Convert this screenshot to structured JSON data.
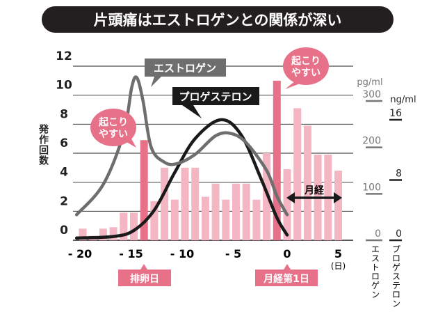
{
  "chart_data": {
    "type": "bar",
    "title": "片頭痛はエストロゲンとの関係が深い",
    "ylabel": "発作回数",
    "ylim": [
      0,
      12
    ],
    "yticks": [
      "0",
      "2",
      "4",
      "6",
      "8",
      "10",
      "12"
    ],
    "xticks": [
      "-20",
      "-15",
      "-10",
      "-5",
      "0",
      "5"
    ],
    "xunit": "(日)",
    "x": [
      -20,
      -19,
      -18,
      -17,
      -16,
      -15,
      -14,
      -13,
      -12,
      -11,
      -10,
      -9,
      -8,
      -7,
      -6,
      -5,
      -4,
      -3,
      -2,
      -1,
      0,
      1,
      2,
      3,
      4,
      5
    ],
    "values": [
      0.8,
      0.3,
      0.8,
      0.9,
      1.9,
      1.9,
      6.9,
      2.7,
      5.0,
      2.8,
      5.0,
      5.0,
      3.0,
      3.9,
      2.8,
      3.9,
      3.9,
      2.8,
      6.0,
      11.0,
      4.9,
      9.1,
      7.9,
      5.9,
      5.9,
      4.8
    ],
    "highlight_x": [
      -14,
      -1
    ],
    "colors": {
      "bar": "#f4b6c2",
      "highlight": "#e8718a",
      "estrogen": "#6e6e6e",
      "progesterone": "#1a1a1a"
    },
    "grid": true,
    "series": [
      {
        "name": "エストロゲン",
        "unit": "pg/ml",
        "axis": "right-1",
        "ticks": [
          "0",
          "100",
          "200",
          "300"
        ],
        "points": [
          [
            -20.6,
            55
          ],
          [
            -18,
            120
          ],
          [
            -16,
            230
          ],
          [
            -15.2,
            330
          ],
          [
            -14.7,
            350
          ],
          [
            -14.1,
            300
          ],
          [
            -13.3,
            200
          ],
          [
            -12,
            168
          ],
          [
            -10.8,
            165
          ],
          [
            -9,
            185
          ],
          [
            -7,
            225
          ],
          [
            -5.5,
            230
          ],
          [
            -4,
            210
          ],
          [
            -2,
            150
          ],
          [
            -1,
            95
          ],
          [
            0,
            55
          ]
        ]
      },
      {
        "name": "プロゲステロン",
        "unit": "ng/ml",
        "axis": "right-2",
        "ticks": [
          "0",
          "8",
          "16"
        ],
        "points": [
          [
            -20.6,
            0.3
          ],
          [
            -17,
            0.5
          ],
          [
            -15,
            1.3
          ],
          [
            -13,
            4
          ],
          [
            -11,
            9
          ],
          [
            -9,
            13.5
          ],
          [
            -6.5,
            16
          ],
          [
            -4.5,
            14
          ],
          [
            -2.5,
            8
          ],
          [
            -1,
            3
          ],
          [
            0,
            0.7
          ]
        ]
      }
    ],
    "annotations": {
      "callout_1": "起こり\nやすい",
      "callout_2": "起こり\nやすい",
      "menses": "月経",
      "ovulation": "排卵日",
      "menses_day1": "月経第1日"
    }
  }
}
